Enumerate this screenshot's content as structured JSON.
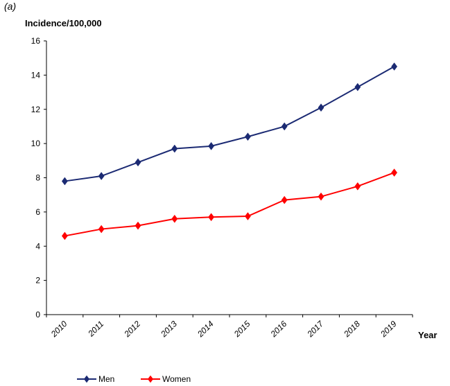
{
  "panel_label": "(a)",
  "chart_data": {
    "type": "line",
    "title": "",
    "ylabel": "Incidence/100,000",
    "xlabel": "Year",
    "categories": [
      "2010",
      "2011",
      "2012",
      "2013",
      "2014",
      "2015",
      "2016",
      "2017",
      "2018",
      "2019"
    ],
    "ylim": [
      0,
      16
    ],
    "yticks": [
      0,
      2,
      4,
      6,
      8,
      10,
      12,
      14,
      16
    ],
    "grid": false,
    "legend_position": "bottom-left",
    "series": [
      {
        "name": "Men",
        "color": "#1b2a73",
        "marker": "diamond",
        "values": [
          7.8,
          8.1,
          8.9,
          9.7,
          9.85,
          10.4,
          11.0,
          12.1,
          13.3,
          14.5
        ]
      },
      {
        "name": "Women",
        "color": "#ff0000",
        "marker": "diamond",
        "values": [
          4.6,
          5.0,
          5.2,
          5.6,
          5.7,
          5.75,
          6.7,
          6.9,
          7.5,
          8.3
        ]
      }
    ]
  }
}
